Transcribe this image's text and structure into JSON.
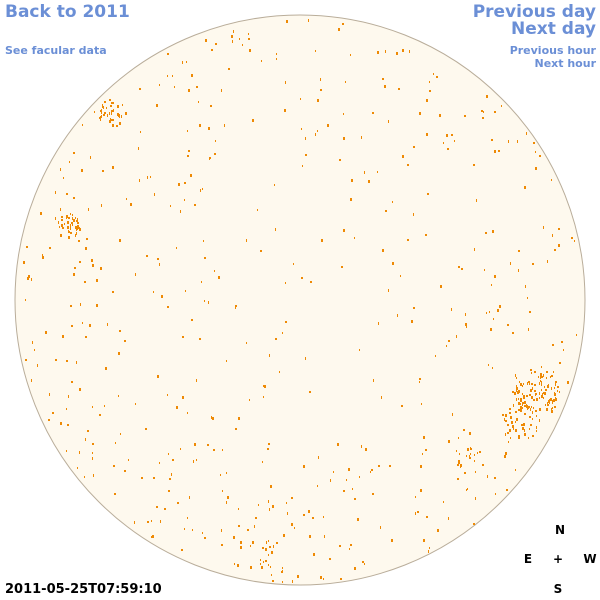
{
  "nav": {
    "back_label": "Back to 2011",
    "facular_label": "See facular data",
    "prev_day_label": "Previous day",
    "next_day_label": "Next day",
    "prev_hour_label": "Previous hour",
    "next_hour_label": "Next hour"
  },
  "timestamp": "2011-05-25T07:59:10",
  "compass": {
    "north": "N",
    "east": "E",
    "center": "+",
    "west": "W",
    "south": "S"
  },
  "colors": {
    "disk_fill": "#fef9ee",
    "disk_outline": "#b9ad9a",
    "facula": "#ee8a05",
    "link": "#6b8fd6"
  }
}
